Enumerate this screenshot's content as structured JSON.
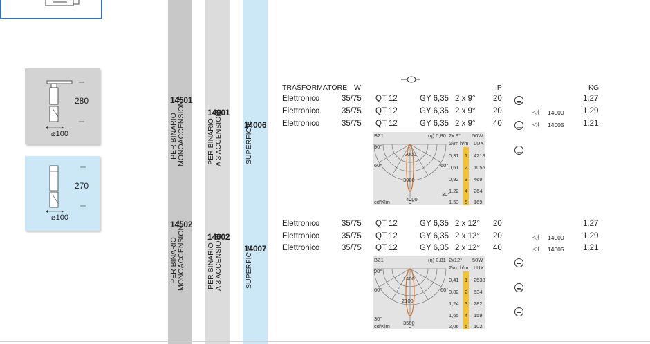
{
  "columns": {
    "binario_mono": {
      "label": "PER BINARIO\nMONOACCENSIONE",
      "line1": "PER BINARIO",
      "line2": "MONOACCENSIONE"
    },
    "binario_3acc": {
      "line1": "PER BINARIO",
      "line2": "A 3 ACCENSIONI"
    },
    "superficie": {
      "line1": "SUPERFICIE"
    }
  },
  "cards": {
    "card1": {
      "dim_height": "280",
      "dim_diameter": "⌀100"
    },
    "card2": {
      "dim_height": "270",
      "dim_diameter": "⌀100"
    }
  },
  "headers": {
    "trasformatore": "TRASFORMATORE",
    "w": "W",
    "ip": "IP",
    "kg": "KG"
  },
  "group1": {
    "codes": {
      "mono": "14501",
      "acc3": "14001",
      "sup": "14006"
    },
    "rows": [
      {
        "tras": "Elettronico",
        "w": "35/75",
        "lamp": "QT 12",
        "socket": "GY 6,35",
        "beam": "2 x  9°",
        "ip": "20",
        "acc": "",
        "kg": "1.27"
      },
      {
        "tras": "Elettronico",
        "w": "35/75",
        "lamp": "QT 12",
        "socket": "GY 6,35",
        "beam": "2 x  9°",
        "ip": "20",
        "acc": "14000",
        "kg": "1.29"
      },
      {
        "tras": "Elettronico",
        "w": "35/75",
        "lamp": "QT 12",
        "socket": "GY 6,35",
        "beam": "2 x  9°",
        "ip": "40",
        "acc": "14005",
        "kg": "1.21"
      }
    ],
    "photometry": {
      "code": "BZ1",
      "eta": "(η) 0,80",
      "beam": "2x 9°",
      "watt": "50W",
      "col_head1": "Ø/m",
      "col_head2": "h/m",
      "col_head3": "LUX",
      "rows": [
        {
          "d": "0,31",
          "h": "1",
          "lux": "4218"
        },
        {
          "d": "0,61",
          "h": "2",
          "lux": "1055"
        },
        {
          "d": "0,92",
          "h": "3",
          "lux": "469"
        },
        {
          "d": "1,22",
          "h": "4",
          "lux": "264"
        },
        {
          "d": "1,53",
          "h": "5",
          "lux": "169"
        }
      ],
      "cd_labels": [
        "2000",
        "3000",
        "4000"
      ],
      "angles": [
        "90°",
        "60°",
        "30°",
        "0°"
      ],
      "unit": "cd/Klm"
    }
  },
  "group2": {
    "codes": {
      "mono": "14502",
      "acc3": "14002",
      "sup": "14007"
    },
    "rows": [
      {
        "tras": "Elettronico",
        "w": "35/75",
        "lamp": "QT 12",
        "socket": "GY 6,35",
        "beam": "2 x 12°",
        "ip": "20",
        "acc": "",
        "kg": "1.27"
      },
      {
        "tras": "Elettronico",
        "w": "35/75",
        "lamp": "QT 12",
        "socket": "GY 6,35",
        "beam": "2 x 12°",
        "ip": "20",
        "acc": "14000",
        "kg": "1.29"
      },
      {
        "tras": "Elettronico",
        "w": "35/75",
        "lamp": "QT 12",
        "socket": "GY 6,35",
        "beam": "2 x 12°",
        "ip": "40",
        "acc": "14005",
        "kg": "1.21"
      }
    ],
    "photometry": {
      "code": "BZ1",
      "eta": "(η) 0,81",
      "beam": "2x12°",
      "watt": "50W",
      "col_head1": "Ø/m",
      "col_head2": "h/m",
      "col_head3": "LUX",
      "rows": [
        {
          "d": "0,41",
          "h": "1",
          "lux": "2538"
        },
        {
          "d": "0,82",
          "h": "2",
          "lux": "634"
        },
        {
          "d": "1,24",
          "h": "3",
          "lux": "282"
        },
        {
          "d": "1,65",
          "h": "4",
          "lux": "159"
        },
        {
          "d": "2,06",
          "h": "5",
          "lux": "102"
        }
      ],
      "cd_labels": [
        "1400",
        "2100",
        "3500"
      ],
      "angles": [
        "90°",
        "60°",
        "30°",
        "0°"
      ],
      "unit": "cd/Klm"
    }
  }
}
